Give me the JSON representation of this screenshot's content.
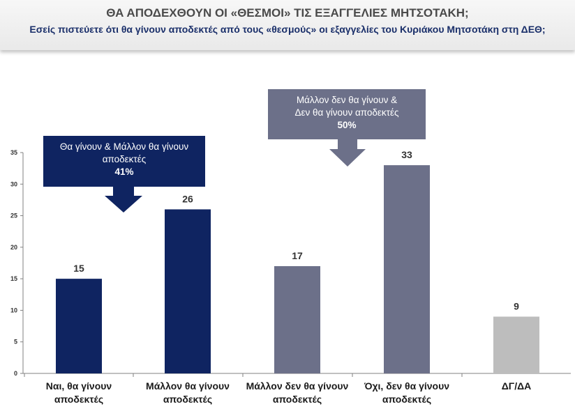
{
  "header": {
    "title": "ΘΑ ΑΠΟΔΕΧΘΟΥΝ ΟΙ «ΘΕΣΜΟΙ» ΤΙΣ ΕΞΑΓΓΕΛΙΕΣ ΜΗΤΣΟΤΑΚΗ;",
    "subtitle": "Εσείς πιστεύετε ότι θα γίνουν αποδεκτές από τους «θεσμούς» οι εξαγγελίες του Κυριάκου Μητσοτάκη στη ΔΕΘ;"
  },
  "chart_data": {
    "type": "bar",
    "categories": [
      [
        "Ναι, θα γίνουν",
        "αποδεκτές"
      ],
      [
        "Μάλλον θα γίνουν",
        "αποδεκτές"
      ],
      [
        "Μάλλον δεν θα γίνουν",
        "αποδεκτές"
      ],
      [
        "Όχι, δεν θα γίνουν",
        "αποδεκτές"
      ],
      [
        "ΔΓ/ΔΑ"
      ]
    ],
    "values": [
      15,
      26,
      17,
      33,
      9
    ],
    "bar_colors": [
      "#0f2461",
      "#0f2461",
      "#6c7089",
      "#6c7089",
      "#bdbdbd"
    ],
    "ylim": [
      0,
      35
    ],
    "yticks": [
      0,
      5,
      10,
      15,
      20,
      25,
      30,
      35
    ],
    "grid": false,
    "annotations": [
      {
        "lines": [
          "Θα γίνουν & Μάλλον θα γίνουν",
          "αποδεκτές"
        ],
        "value": "41%",
        "color": "#0f2461"
      },
      {
        "lines": [
          "Μάλλον δεν θα γίνουν &",
          "Δεν θα γίνουν αποδεκτές"
        ],
        "value": "50%",
        "color": "#6c7089"
      }
    ]
  }
}
